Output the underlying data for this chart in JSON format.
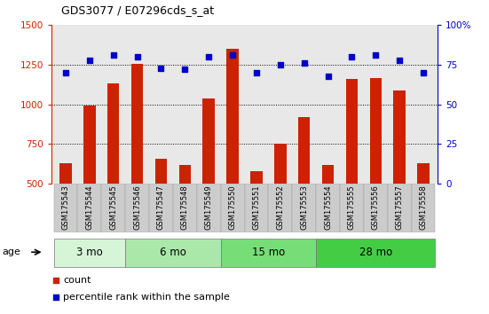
{
  "title": "GDS3077 / E07296cds_s_at",
  "samples": [
    "GSM175543",
    "GSM175544",
    "GSM175545",
    "GSM175546",
    "GSM175547",
    "GSM175548",
    "GSM175549",
    "GSM175550",
    "GSM175551",
    "GSM175552",
    "GSM175553",
    "GSM175554",
    "GSM175555",
    "GSM175556",
    "GSM175557",
    "GSM175558"
  ],
  "counts": [
    630,
    990,
    1130,
    1255,
    655,
    620,
    1040,
    1350,
    580,
    755,
    920,
    620,
    1160,
    1165,
    1090,
    630
  ],
  "percentile_ranks": [
    70,
    78,
    81,
    80,
    73,
    72,
    80,
    81,
    70,
    75,
    76,
    68,
    80,
    81,
    78,
    70
  ],
  "age_groups": [
    {
      "label": "3 mo",
      "start": 0,
      "end": 3,
      "color": "#d6f5d6"
    },
    {
      "label": "6 mo",
      "start": 3,
      "end": 7,
      "color": "#aae8aa"
    },
    {
      "label": "15 mo",
      "start": 7,
      "end": 11,
      "color": "#77dd77"
    },
    {
      "label": "28 mo",
      "start": 11,
      "end": 16,
      "color": "#44cc44"
    }
  ],
  "bar_color": "#cc2200",
  "dot_color": "#0000cc",
  "ylim_left": [
    500,
    1500
  ],
  "ylim_right": [
    0,
    100
  ],
  "yticks_left": [
    500,
    750,
    1000,
    1250,
    1500
  ],
  "yticks_right": [
    0,
    25,
    50,
    75,
    100
  ],
  "grid_values": [
    750,
    1000,
    1250
  ],
  "left_tick_color": "#cc2200",
  "right_tick_color": "#0000cc",
  "plot_bg": "#e8e8e8",
  "tick_box_bg": "#cccccc",
  "bar_width": 0.5
}
